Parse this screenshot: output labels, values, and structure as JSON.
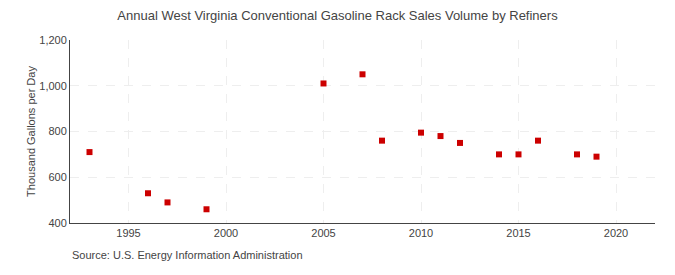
{
  "chart_data": {
    "type": "scatter",
    "title": "Annual West Virginia Conventional Gasoline Rack Sales Volume by Refiners",
    "ylabel": "Thousand Gallons per Day",
    "x": [
      1993,
      1996,
      1997,
      1999,
      2005,
      2007,
      2008,
      2010,
      2011,
      2012,
      2014,
      2015,
      2016,
      2018,
      2019
    ],
    "values": [
      710,
      530,
      490,
      460,
      1010,
      1050,
      760,
      795,
      780,
      750,
      700,
      700,
      760,
      700,
      690
    ],
    "color": "#cc0000",
    "marker": "square",
    "xlim": [
      1992,
      2022
    ],
    "ylim": [
      400,
      1200
    ],
    "xticks": [
      1995,
      2000,
      2005,
      2010,
      2015,
      2020
    ],
    "yticks": [
      400,
      600,
      800,
      {
        "value": 1000,
        "label": "1,000"
      },
      {
        "value": 1200,
        "label": "1,200"
      }
    ],
    "grid": true,
    "annotations": [
      "Source: U.S. Energy Information Administration"
    ]
  }
}
